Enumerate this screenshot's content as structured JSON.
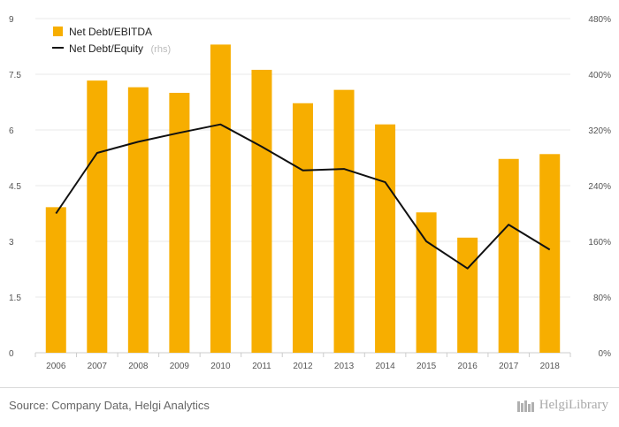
{
  "chart_data": {
    "type": "bar",
    "categories": [
      "2006",
      "2007",
      "2008",
      "2009",
      "2010",
      "2011",
      "2012",
      "2013",
      "2014",
      "2015",
      "2016",
      "2017",
      "2018"
    ],
    "series": [
      {
        "name": "Net Debt/EBITDA",
        "type": "bar",
        "axis": "left",
        "color": "#F7AE00",
        "values": [
          3.92,
          7.33,
          7.15,
          7.0,
          8.3,
          7.62,
          6.72,
          7.08,
          6.15,
          3.78,
          3.1,
          5.22,
          5.35
        ]
      },
      {
        "name": "Net Debt/Equity",
        "suffix": "(rhs)",
        "type": "line",
        "axis": "right",
        "color": "#111111",
        "values": [
          200,
          287,
          303,
          316,
          328,
          296,
          262,
          264,
          245,
          160,
          121,
          184,
          148
        ]
      }
    ],
    "left_axis": {
      "ylim": [
        0,
        9
      ],
      "ticks": [
        "0",
        "1.5",
        "3",
        "4.5",
        "6",
        "7.5",
        "9"
      ]
    },
    "right_axis": {
      "ylim": [
        0,
        480
      ],
      "ticks": [
        "0%",
        "80%",
        "160%",
        "240%",
        "320%",
        "400%",
        "480%"
      ]
    },
    "grid": true,
    "legend": "top-left"
  },
  "footer": {
    "source": "Source: Company Data, Helgi Analytics",
    "brand": "HelgiLibrary"
  }
}
